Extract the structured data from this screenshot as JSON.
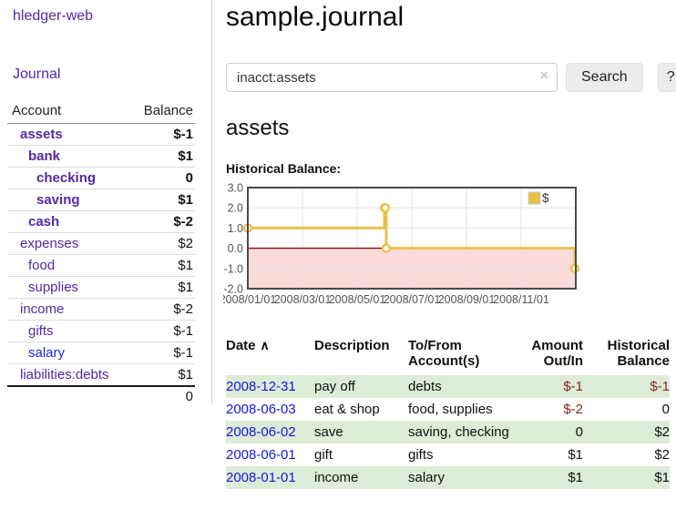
{
  "colors": {
    "purple": "#5229a3",
    "linkBlue": "#2222dd",
    "dateBlue": "#1717dd",
    "negStrong": "#8e1f1f",
    "negFaint": "#c08484",
    "rowGreen": "#ddecd6",
    "gold": "#e9c24a",
    "pink": "#fbdada",
    "zeroLine": "#7f1010",
    "chartBorder": "#4a4a4a",
    "grid": "#e3e3e3",
    "tickText": "#545454",
    "buttonBg": "#ececec",
    "divider": "#cccccc"
  },
  "app": {
    "title": "hledger-web"
  },
  "sidebar": {
    "journal_link": "Journal",
    "accounts": {
      "col_account": "Account",
      "col_balance": "Balance",
      "rows": [
        {
          "name": "assets",
          "balance": "$-1",
          "depth": 1,
          "in_tree": true,
          "neg": "strong"
        },
        {
          "name": "bank",
          "balance": "$1",
          "depth": 2,
          "in_tree": true
        },
        {
          "name": "checking",
          "balance": "0",
          "depth": 3,
          "in_tree": true
        },
        {
          "name": "saving",
          "balance": "$1",
          "depth": 3,
          "in_tree": true
        },
        {
          "name": "cash",
          "balance": "$-2",
          "depth": 2,
          "in_tree": true,
          "neg": "strong"
        },
        {
          "name": "expenses",
          "balance": "$2",
          "depth": 1
        },
        {
          "name": "food",
          "balance": "$1",
          "depth": 2
        },
        {
          "name": "supplies",
          "balance": "$1",
          "depth": 2
        },
        {
          "name": "income",
          "balance": "$-2",
          "depth": 1,
          "neg": "faint"
        },
        {
          "name": "gifts",
          "balance": "$-1",
          "depth": 2,
          "neg": "faint"
        },
        {
          "name": "salary",
          "balance": "$-1",
          "depth": 2,
          "neg": "faint",
          "blue": true
        },
        {
          "name": "liabilities:debts",
          "balance": "$1",
          "depth": 1
        }
      ],
      "total": "0"
    }
  },
  "main": {
    "title": "sample.journal",
    "search": {
      "value": "inacct:assets",
      "clear_icon": "×",
      "button": "Search",
      "help": "?"
    },
    "heading": "assets",
    "chart_title": "Historical Balance:"
  },
  "chart_data": {
    "type": "line",
    "step": true,
    "title": "Historical Balance",
    "series": [
      {
        "name": "$",
        "points": [
          [
            "2008-01-01",
            1
          ],
          [
            "2008-06-01",
            2
          ],
          [
            "2008-06-02",
            2
          ],
          [
            "2008-06-03",
            0
          ],
          [
            "2008-12-31",
            -1
          ]
        ]
      }
    ],
    "xlim": [
      "2008-01-01",
      "2009-01-01"
    ],
    "ylim": [
      -2,
      3
    ],
    "x_ticks": [
      {
        "date": "2008-01-01",
        "label": "2008/01/01"
      },
      {
        "date": "2008-03-01",
        "label": "2008/03/01"
      },
      {
        "date": "2008-05-01",
        "label": "2008/05/01"
      },
      {
        "date": "2008-07-01",
        "label": "2008/07/01"
      },
      {
        "date": "2008-09-01",
        "label": "2008/09/01"
      },
      {
        "date": "2008-11-01",
        "label": "2008/11/01"
      }
    ],
    "y_ticks": [
      {
        "value": 3,
        "label": "3.0"
      },
      {
        "value": 2,
        "label": "2.0"
      },
      {
        "value": 1,
        "label": "1.0"
      },
      {
        "value": 0,
        "label": "0.0"
      },
      {
        "value": -1,
        "label": "-1.0"
      },
      {
        "value": -2,
        "label": "-2.0"
      }
    ],
    "grid": true,
    "legend_position": "top-right",
    "negative_region": true
  },
  "register": {
    "sort_icon": "∧",
    "headers": [
      "Date",
      "Description",
      "To/From Account(s)",
      "Amount Out/In",
      "Historical Balance"
    ],
    "rows": [
      {
        "date": "2008-12-31",
        "description": "pay off",
        "accounts": "debts",
        "amount": "$-1",
        "balance": "$-1"
      },
      {
        "date": "2008-06-03",
        "description": "eat & shop",
        "accounts": "food, supplies",
        "amount": "$-2",
        "balance": "0"
      },
      {
        "date": "2008-06-02",
        "description": "save",
        "accounts": "saving, checking",
        "amount": "0",
        "balance": "$2"
      },
      {
        "date": "2008-06-01",
        "description": "gift",
        "accounts": "gifts",
        "amount": "$1",
        "balance": "$2"
      },
      {
        "date": "2008-01-01",
        "description": "income",
        "accounts": "salary",
        "amount": "$1",
        "balance": "$1"
      }
    ]
  }
}
